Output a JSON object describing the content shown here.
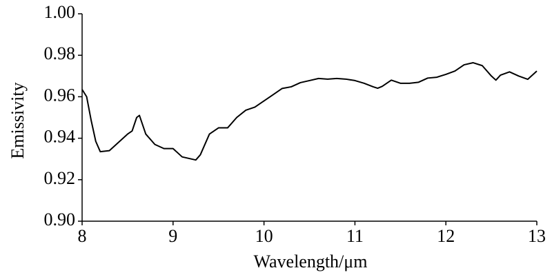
{
  "chart_data": {
    "type": "line",
    "xlabel": "Wavelength/μm",
    "ylabel": "Emissivity",
    "x": [
      8.0,
      8.05,
      8.1,
      8.15,
      8.2,
      8.3,
      8.4,
      8.5,
      8.55,
      8.6,
      8.63,
      8.7,
      8.8,
      8.9,
      9.0,
      9.1,
      9.2,
      9.25,
      9.3,
      9.4,
      9.5,
      9.6,
      9.7,
      9.8,
      9.9,
      10.0,
      10.1,
      10.2,
      10.3,
      10.4,
      10.5,
      10.6,
      10.7,
      10.8,
      10.9,
      11.0,
      11.1,
      11.2,
      11.25,
      11.3,
      11.4,
      11.5,
      11.6,
      11.7,
      11.8,
      11.9,
      12.0,
      12.1,
      12.2,
      12.3,
      12.4,
      12.5,
      12.55,
      12.6,
      12.7,
      12.8,
      12.9,
      13.0
    ],
    "series": [
      {
        "color": "#000000",
        "values": [
          0.9635,
          0.96,
          0.9485,
          0.9385,
          0.9335,
          0.934,
          0.938,
          0.942,
          0.9435,
          0.95,
          0.951,
          0.942,
          0.937,
          0.935,
          0.935,
          0.931,
          0.93,
          0.9295,
          0.932,
          0.942,
          0.945,
          0.945,
          0.95,
          0.9535,
          0.955,
          0.958,
          0.961,
          0.964,
          0.9648,
          0.9668,
          0.9678,
          0.9688,
          0.9685,
          0.9688,
          0.9685,
          0.9678,
          0.9665,
          0.9648,
          0.9641,
          0.965,
          0.968,
          0.9665,
          0.9665,
          0.967,
          0.969,
          0.9694,
          0.9708,
          0.9724,
          0.9754,
          0.9764,
          0.975,
          0.97,
          0.968,
          0.9704,
          0.972,
          0.97,
          0.9684,
          0.9724
        ]
      }
    ],
    "xlim": [
      8,
      13
    ],
    "xticks": [
      8,
      9,
      10,
      11,
      12,
      13
    ],
    "ylim": [
      0.9,
      1.0
    ],
    "yticks": [
      {
        "value": 0.9,
        "label": "0.90"
      },
      {
        "value": 0.92,
        "label": "0.92"
      },
      {
        "value": 0.94,
        "label": "0.94"
      },
      {
        "value": 0.96,
        "label": "0.96"
      },
      {
        "value": 0.98,
        "label": "0.98"
      },
      {
        "value": 1.0,
        "label": "1.00"
      }
    ],
    "grid": false
  }
}
